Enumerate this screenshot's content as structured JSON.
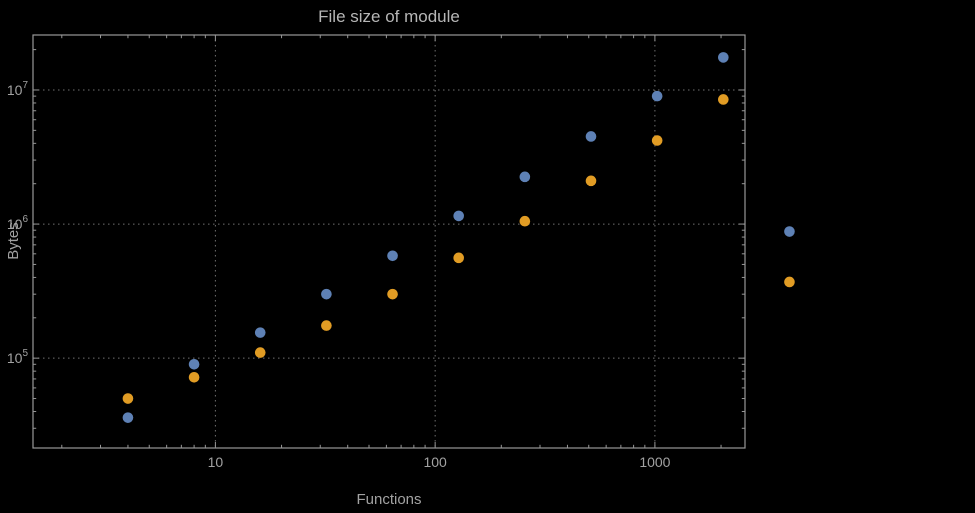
{
  "chart_data": {
    "type": "scatter",
    "title": "File size of module",
    "xlabel": "Functions",
    "ylabel": "Bytes",
    "x_scale": "log",
    "y_scale": "log",
    "grid": "dotted",
    "legend": "none",
    "x": [
      4,
      8,
      16,
      32,
      64,
      128,
      256,
      512,
      1024,
      2048,
      4096
    ],
    "series": [
      {
        "name": "blue",
        "color": "#5e81b5",
        "values": [
          36000,
          90000,
          155000,
          300000,
          580000,
          1150000,
          2250000,
          4500000,
          9000000,
          17500000,
          880000
        ]
      },
      {
        "name": "orange",
        "color": "#e19c24",
        "values": [
          50000,
          72000,
          110000,
          175000,
          300000,
          560000,
          1050000,
          2100000,
          4200000,
          8500000,
          370000
        ]
      }
    ],
    "x_ticks": [
      10,
      100,
      1000
    ],
    "x_tick_labels": [
      "10",
      "100",
      "1000"
    ],
    "y_tick_exponents": [
      5,
      6,
      7
    ],
    "x_range_log": [
      0.17,
      3.41
    ],
    "y_range_log": [
      4.33,
      7.41
    ]
  },
  "colors": {
    "background": "#000000",
    "frame": "#989898",
    "grid": "#6f6f6f",
    "tick_label": "#a2a2a2",
    "title": "#b6b6b6",
    "axis_label": "#a2a2a2",
    "series_blue": "#5e81b5",
    "series_orange": "#e19c24"
  }
}
